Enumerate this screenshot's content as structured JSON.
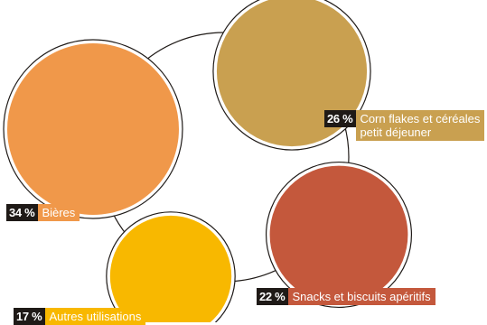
{
  "chart_data": {
    "type": "bubble",
    "unit": "%",
    "series": [
      {
        "id": "bieres",
        "value": 34,
        "pct_label": "34 %",
        "name_lines": [
          "Bières"
        ],
        "color": "#f0984a"
      },
      {
        "id": "corn-flakes",
        "value": 26,
        "pct_label": "26 %",
        "name_lines": [
          "Corn flakes et céréales",
          "petit déjeuner"
        ],
        "color": "#c9a050"
      },
      {
        "id": "snacks",
        "value": 22,
        "pct_label": "22 %",
        "name_lines": [
          "Snacks et biscuits apéritifs"
        ],
        "color": "#c4583c"
      },
      {
        "id": "autres",
        "value": 17,
        "pct_label": "17 %",
        "name_lines": [
          "Autres utilisations"
        ],
        "color": "#f8b800"
      }
    ],
    "ring_color": "#1f1a17",
    "label_color": "#1f1a17"
  }
}
